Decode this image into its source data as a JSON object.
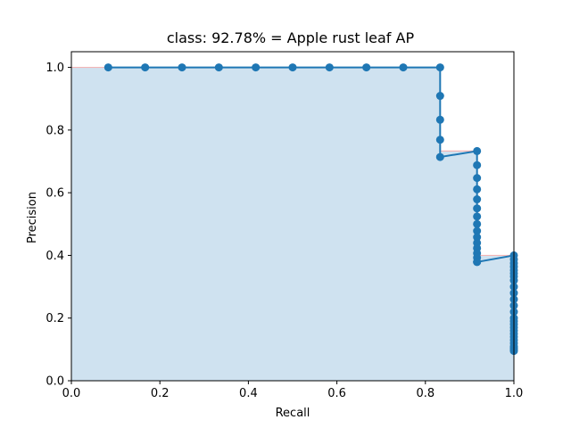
{
  "chart_data": {
    "type": "line",
    "title": "class: 92.78% = Apple rust leaf AP",
    "xlabel": "Recall",
    "ylabel": "Precision",
    "xlim": [
      0.0,
      1.0
    ],
    "ylim": [
      0.0,
      1.05
    ],
    "xticks": [
      "0.0",
      "0.2",
      "0.4",
      "0.6",
      "0.8",
      "1.0"
    ],
    "yticks": [
      "0.0",
      "0.2",
      "0.4",
      "0.6",
      "0.8",
      "1.0"
    ],
    "grid": false,
    "colors": {
      "line": "#1f77b4",
      "fill": "#cfe2f0",
      "envelope": "#f4b6b6"
    },
    "series": [
      {
        "x": [
          0.0833,
          0.1667,
          0.25,
          0.3333,
          0.4167,
          0.5,
          0.5833,
          0.6667,
          0.75,
          0.8333,
          0.8333,
          0.8333,
          0.8333,
          0.8333,
          0.9167,
          0.9167,
          0.9167,
          0.9167,
          0.9167,
          0.9167,
          0.9167,
          0.9167,
          0.9167,
          0.9167,
          0.9167,
          0.9167,
          0.9167,
          0.9167,
          0.9167,
          0.9167,
          1.0,
          1.0,
          1.0,
          1.0,
          1.0,
          1.0,
          1.0,
          1.0,
          1.0,
          1.0,
          1.0,
          1.0,
          1.0,
          1.0,
          1.0,
          1.0,
          1.0,
          1.0,
          1.0,
          1.0,
          1.0,
          1.0,
          1.0,
          1.0,
          1.0,
          1.0
        ],
        "y": [
          1.0,
          1.0,
          1.0,
          1.0,
          1.0,
          1.0,
          1.0,
          1.0,
          1.0,
          1.0,
          0.909,
          0.833,
          0.769,
          0.714,
          0.733,
          0.688,
          0.647,
          0.611,
          0.579,
          0.55,
          0.524,
          0.5,
          0.478,
          0.458,
          0.44,
          0.423,
          0.407,
          0.393,
          0.379,
          0.379,
          0.4,
          0.387,
          0.375,
          0.364,
          0.353,
          0.343,
          0.333,
          0.32,
          0.3,
          0.28,
          0.26,
          0.24,
          0.22,
          0.2,
          0.19,
          0.18,
          0.17,
          0.16,
          0.15,
          0.14,
          0.13,
          0.12,
          0.11,
          0.105,
          0.1,
          0.095
        ]
      }
    ]
  }
}
